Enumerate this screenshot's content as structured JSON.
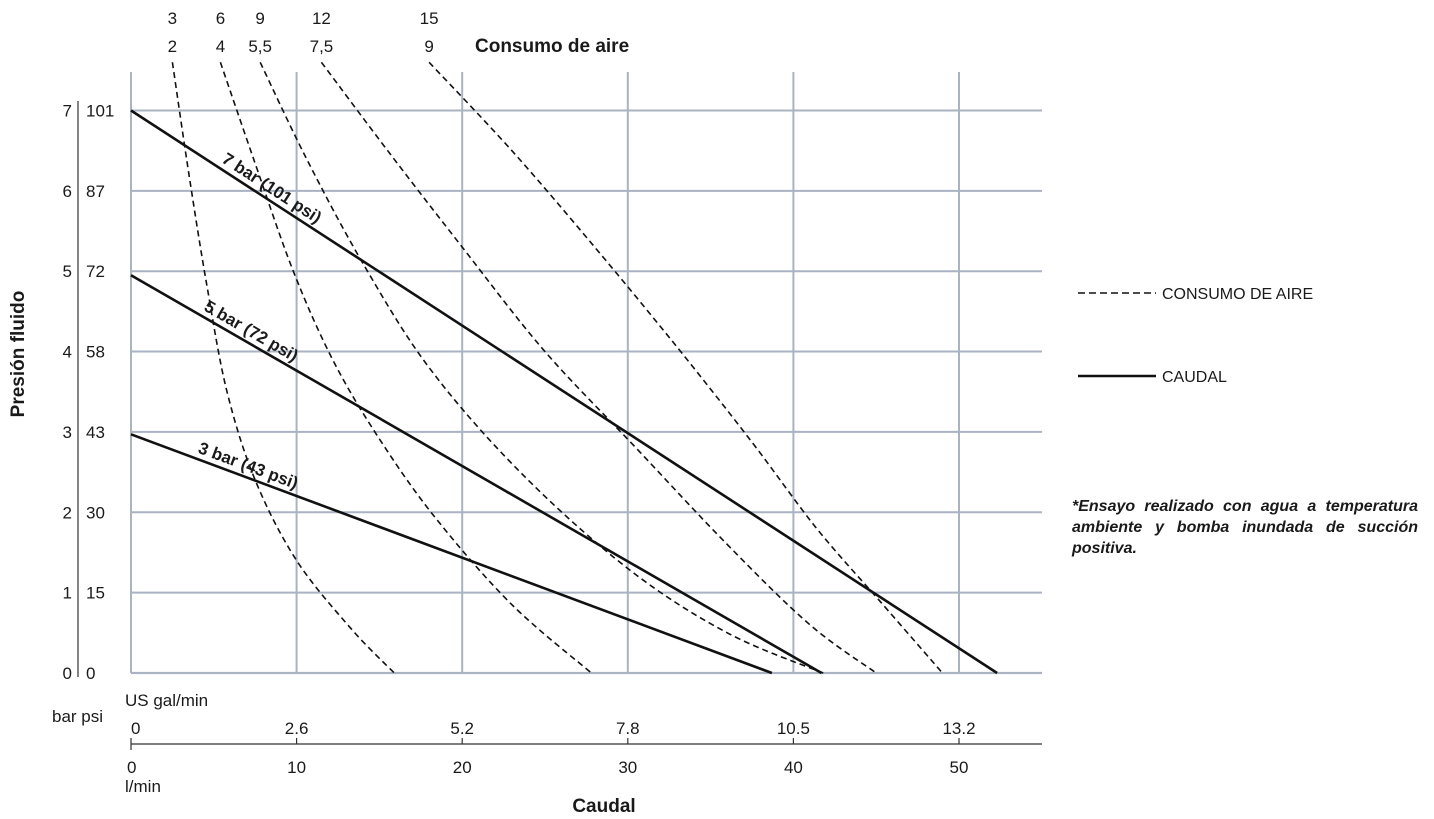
{
  "chart_data": {
    "type": "line",
    "title": "",
    "top_axis_title": "Consumo de aire",
    "xlabel": "Caudal",
    "ylabel": "Presión fluido",
    "xlim": [
      0,
      55
    ],
    "ylim": [
      0,
      7
    ],
    "grid": true,
    "x_lmin_ticks": [
      "0",
      "10",
      "20",
      "30",
      "40",
      "50"
    ],
    "x_lmin_unit": "l/min",
    "x_gal_ticks": [
      "0",
      "2.6",
      "5.2",
      "7.8",
      "10.5",
      "13.2"
    ],
    "x_gal_unit": "US gal/min",
    "x_gal_tick_positions_lmin": [
      0,
      10,
      20,
      30,
      40,
      50
    ],
    "y_bar_ticks": [
      "0",
      "1",
      "2",
      "3",
      "4",
      "5",
      "6",
      "7"
    ],
    "y_psi_ticks": [
      "0",
      "15",
      "30",
      "43",
      "58",
      "72",
      "87",
      "101"
    ],
    "y_units_label": "bar psi",
    "flow_series": [
      {
        "label": "7 bar (101 psi)",
        "points": [
          [
            0,
            7
          ],
          [
            52.3,
            0
          ]
        ]
      },
      {
        "label": "5 bar (72 psi)",
        "points": [
          [
            0,
            4.95
          ],
          [
            41.7,
            0
          ]
        ]
      },
      {
        "label": "3 bar (43 psi)",
        "points": [
          [
            0,
            2.97
          ],
          [
            38.7,
            0
          ]
        ]
      }
    ],
    "air_series": [
      {
        "label_top": "3",
        "label_bottom": "2",
        "points": [
          [
            2.5,
            7.6
          ],
          [
            3.5,
            6.2
          ],
          [
            4.6,
            4.8
          ],
          [
            5.8,
            3.5
          ],
          [
            7.5,
            2.4
          ],
          [
            10,
            1.4
          ],
          [
            13.3,
            0.55
          ],
          [
            15.9,
            0
          ]
        ]
      },
      {
        "label_top": "6",
        "label_bottom": "4",
        "points": [
          [
            5.4,
            7.6
          ],
          [
            7.4,
            6.4
          ],
          [
            9.8,
            5.0
          ],
          [
            12.3,
            3.85
          ],
          [
            15.2,
            2.85
          ],
          [
            18.5,
            1.9
          ],
          [
            23,
            0.85
          ],
          [
            27.8,
            0
          ]
        ]
      },
      {
        "label_top": "9",
        "label_bottom": "5,5",
        "points": [
          [
            7.8,
            7.6
          ],
          [
            10.6,
            6.4
          ],
          [
            14,
            5.1
          ],
          [
            18,
            3.8
          ],
          [
            23.5,
            2.5
          ],
          [
            30,
            1.3
          ],
          [
            36,
            0.5
          ],
          [
            41.8,
            0
          ]
        ]
      },
      {
        "label_top": "12",
        "label_bottom": "7,5",
        "points": [
          [
            11.5,
            7.6
          ],
          [
            15.5,
            6.5
          ],
          [
            20,
            5.3
          ],
          [
            25,
            4.0
          ],
          [
            30.5,
            2.8
          ],
          [
            36,
            1.6
          ],
          [
            41,
            0.6
          ],
          [
            45,
            0
          ]
        ]
      },
      {
        "label_top": "15",
        "label_bottom": "9",
        "points": [
          [
            18,
            7.6
          ],
          [
            23,
            6.5
          ],
          [
            28,
            5.3
          ],
          [
            32.8,
            4.1
          ],
          [
            37.4,
            2.9
          ],
          [
            41.4,
            1.8
          ],
          [
            45.2,
            0.9
          ],
          [
            49,
            0
          ]
        ]
      }
    ],
    "legend": [
      {
        "label": "CONSUMO DE AIRE",
        "style": "dashed"
      },
      {
        "label": "CAUDAL",
        "style": "solid"
      }
    ],
    "legend_position": "right",
    "note": "*Ensayo realizado con agua a temperatura ambiente y bomba inundada de succión positiva."
  }
}
